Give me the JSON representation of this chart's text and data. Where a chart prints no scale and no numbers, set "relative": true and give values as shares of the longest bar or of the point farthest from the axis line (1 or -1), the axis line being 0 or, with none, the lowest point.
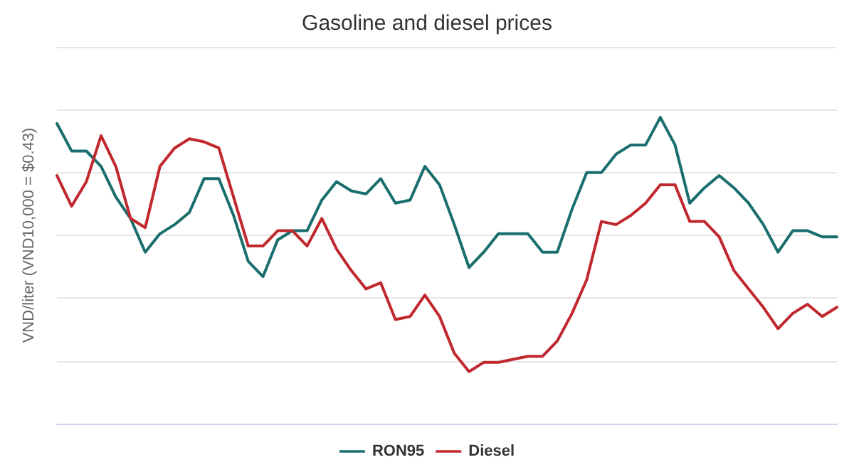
{
  "chart_data": {
    "type": "line",
    "title": "Gasoline and diesel prices",
    "ylabel": "VND/liter (VND10,000 = $0.43)",
    "relative": true,
    "grid": "y",
    "legend": "bottom",
    "marker": "none",
    "line_style": "solid",
    "categories": [
      null,
      null,
      null,
      null,
      null,
      null,
      null,
      null,
      null,
      null,
      null,
      null,
      null,
      null,
      null,
      null,
      null,
      null,
      null,
      null,
      null,
      null,
      null,
      null,
      null,
      null,
      null,
      null,
      null,
      null,
      null,
      null,
      null,
      null,
      null,
      null,
      null,
      null,
      null,
      null,
      null,
      null,
      null,
      null,
      null,
      null,
      null,
      null,
      null,
      null,
      null,
      null,
      null,
      null
    ],
    "series": [
      {
        "name": "RON95",
        "color": "#1a6e6e",
        "values": [
          0.98,
          0.89,
          0.89,
          0.84,
          0.74,
          0.67,
          0.56,
          0.62,
          0.65,
          0.69,
          0.8,
          0.8,
          0.68,
          0.53,
          0.48,
          0.6,
          0.63,
          0.63,
          0.73,
          0.79,
          0.76,
          0.75,
          0.8,
          0.72,
          0.73,
          0.84,
          0.78,
          0.65,
          0.51,
          0.56,
          0.62,
          0.62,
          0.62,
          0.56,
          0.56,
          0.7,
          0.82,
          0.82,
          0.88,
          0.91,
          0.91,
          1,
          0.91,
          0.72,
          0.77,
          0.81,
          0.77,
          0.72,
          0.65,
          0.56,
          0.63,
          0.63,
          0.61,
          0.61
        ]
      },
      {
        "name": "Diesel",
        "color": "#c0282d",
        "values": [
          0.81,
          0.71,
          0.79,
          0.94,
          0.84,
          0.67,
          0.64,
          0.84,
          0.9,
          0.93,
          0.92,
          0.9,
          0.74,
          0.58,
          0.58,
          0.63,
          0.63,
          0.58,
          0.67,
          0.57,
          0.5,
          0.44,
          0.46,
          0.34,
          0.35,
          0.42,
          0.35,
          0.23,
          0.17,
          0.2,
          0.2,
          0.21,
          0.22,
          0.22,
          0.27,
          0.36,
          0.47,
          0.66,
          0.65,
          0.68,
          0.72,
          0.78,
          0.78,
          0.66,
          0.66,
          0.61,
          0.5,
          0.44,
          0.38,
          0.31,
          0.36,
          0.39,
          0.35,
          0.38
        ]
      }
    ]
  }
}
